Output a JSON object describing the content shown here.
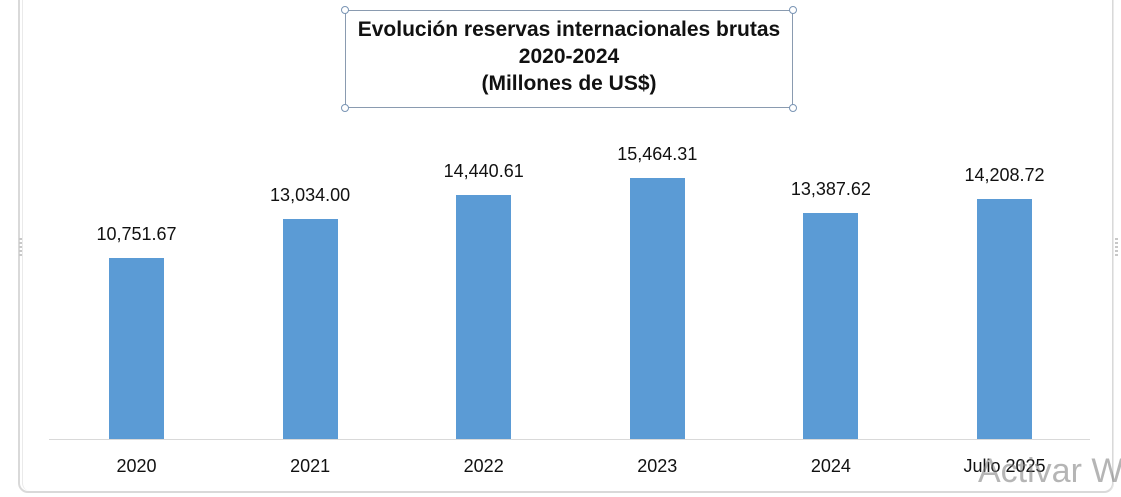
{
  "chart_data": {
    "type": "bar",
    "title": "Evolución  reservas internacionales  brutas 2020-2024 (Millones de US$)",
    "title_lines": [
      "Evolución  reservas internacionales  brutas",
      "2020-2024",
      "(Millones de US$)"
    ],
    "categories": [
      "2020",
      "2021",
      "2022",
      "2023",
      "2024",
      "Julio 2025"
    ],
    "values": [
      10751.67,
      13034.0,
      14440.61,
      15464.31,
      13387.62,
      14208.72
    ],
    "value_labels": [
      "10,751.67",
      "13,034.00",
      "14,440.61",
      "15,464.31",
      "13,387.62",
      "14,208.72"
    ],
    "xlabel": "",
    "ylabel": "",
    "grid": false,
    "legend": null,
    "bar_color": "#5b9bd5"
  },
  "overlay": {
    "watermark": "Activar W"
  }
}
